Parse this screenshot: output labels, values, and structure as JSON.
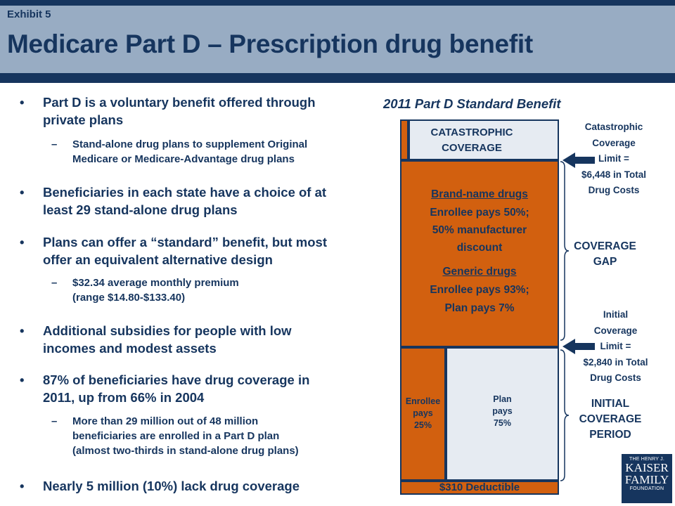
{
  "header": {
    "exhibit": "Exhibit 5",
    "title": "Medicare Part D – Prescription drug benefit"
  },
  "bullets": [
    {
      "line1": "Part D is a voluntary benefit offered through",
      "line2": "private plans"
    },
    {
      "sub": true,
      "line1": "Stand-alone  drug plans to supplement Original",
      "line2": "Medicare  or Medicare-Advantage  drug plans"
    },
    {
      "line1": "Beneficiaries in each state have a choice of at",
      "line2": "least 29 stand-alone drug plans"
    },
    {
      "line1": "Plans can offer a “standard” benefit, but most",
      "line2": "offer an equivalent alternative design"
    },
    {
      "sub": true,
      "line1": "$32.34 average monthly premium",
      "line2": "(range $14.80-$133.40)"
    },
    {
      "line1": "Additional subsidies for people with low",
      "line2": "incomes and modest assets"
    },
    {
      "line1": "87% of beneficiaries have drug coverage in",
      "line2": "2011, up from 66% in 2004"
    },
    {
      "sub": true,
      "line1": "More than 29 million out of 48 million",
      "line2": "beneficiaries are enrolled in a Part D plan",
      "line3": "(almost two-thirds in stand-alone  drug plans)"
    },
    {
      "line1": "Nearly 5 million (10%) lack drug coverage"
    }
  ],
  "diagram": {
    "title": "2011 Part D Standard Benefit",
    "catastrophic": {
      "line1": "CATASTROPHIC",
      "line2": "COVERAGE"
    },
    "gap": {
      "brand_heading": "Brand-name drugs",
      "brand_line1": "Enrollee pays 50%;",
      "brand_line2": "50% manufacturer",
      "brand_line3": "discount",
      "generic_heading": "Generic drugs",
      "generic_line1": "Enrollee pays 93%;",
      "generic_line2": "Plan pays 7%"
    },
    "initial": {
      "enrollee": [
        "Enrollee",
        "pays",
        "25%"
      ],
      "plan": [
        "Plan",
        "pays",
        "75%"
      ]
    },
    "deductible": "$310 Deductible",
    "right": {
      "cat_limit": [
        "Catastrophic",
        "Coverage",
        "Limit =",
        "$6,448 in Total",
        "Drug Costs"
      ],
      "gap": [
        "COVERAGE",
        "GAP"
      ],
      "init_limit": [
        "Initial",
        "Coverage",
        "Limit =",
        "$2,840 in Total",
        "Drug Costs"
      ],
      "initial_period": [
        "INITIAL",
        "COVERAGE",
        "PERIOD"
      ]
    }
  },
  "logo": {
    "line1": "THE HENRY J.",
    "line2": "KAISER",
    "line3": "FAMILY",
    "line4": "FOUNDATION"
  },
  "colors": {
    "navy": "#16355e",
    "orange": "#d2600f",
    "pale": "#e6ebf2",
    "header": "#98acc3"
  },
  "icons": {
    "arrow": "left-pointing-arrow-icon",
    "brace": "right-curly-brace"
  }
}
